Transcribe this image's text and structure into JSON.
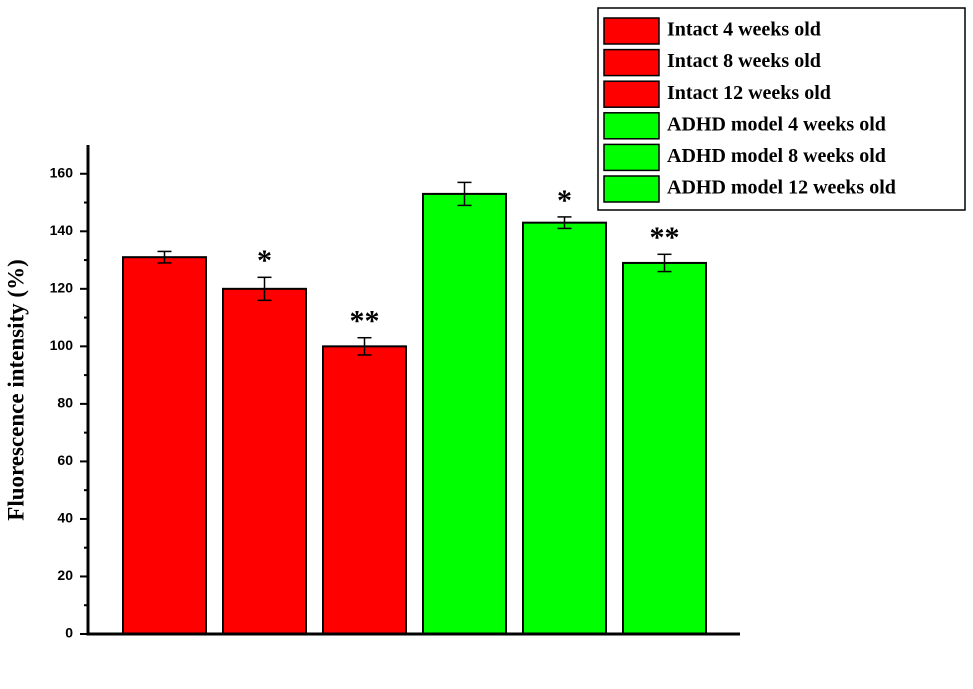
{
  "chart_data": {
    "type": "bar",
    "y_label": "Fluorescence intensity (%)",
    "ylim": [
      0,
      170
    ],
    "yticks": [
      0,
      20,
      40,
      60,
      80,
      100,
      120,
      140,
      160
    ],
    "series": [
      {
        "name": "Intact 4 weeks old",
        "color": "#ff0000",
        "values": [
          131
        ],
        "errors": [
          2
        ],
        "annotations": [
          null
        ]
      },
      {
        "name": "Intact 8 weeks old",
        "color": "#ff0000",
        "values": [
          120
        ],
        "errors": [
          4
        ],
        "annotations": [
          "*"
        ]
      },
      {
        "name": "Intact 12 weeks old",
        "color": "#ff0000",
        "values": [
          100
        ],
        "errors": [
          3
        ],
        "annotations": [
          "**"
        ]
      },
      {
        "name": "ADHD model 4 weeks old",
        "color": "#00ff00",
        "values": [
          153
        ],
        "errors": [
          4
        ],
        "annotations": [
          null
        ]
      },
      {
        "name": "ADHD model 8 weeks old",
        "color": "#00ff00",
        "values": [
          143
        ],
        "errors": [
          2
        ],
        "annotations": [
          "*"
        ]
      },
      {
        "name": "ADHD model 12 weeks old",
        "color": "#00ff00",
        "values": [
          129
        ],
        "errors": [
          3
        ],
        "annotations": [
          "**"
        ]
      }
    ],
    "legend": "upper right"
  }
}
